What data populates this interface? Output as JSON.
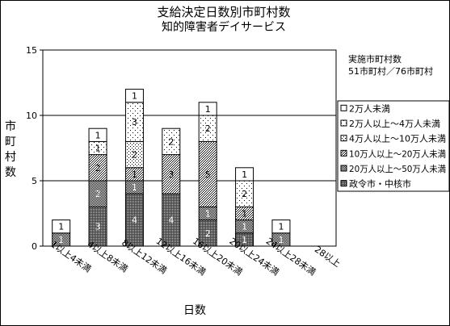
{
  "chart_data": {
    "type": "bar",
    "stacked": true,
    "title": "支給決定日数別市町村数",
    "subtitle": "知的障害者デイサービス",
    "xlabel": "日数",
    "ylabel": "市町村数",
    "ylim": [
      0,
      15
    ],
    "yticks": [
      0,
      5,
      10,
      15
    ],
    "grid": true,
    "legend_position": "right",
    "annotation_lines": [
      "実施市町村数",
      "51市町村／76市町村"
    ],
    "categories": [
      "1以上4未満",
      "4以上8未満",
      "8以上12未満",
      "12以上16未満",
      "16以上20未満",
      "20以上24未満",
      "24以上28未満",
      "28以上"
    ],
    "series": [
      {
        "name": "政令市・中核市",
        "values": [
          0,
          3,
          4,
          4,
          2,
          1,
          0,
          0
        ],
        "pattern": "dense-dots"
      },
      {
        "name": "20万人以上～50万人未満",
        "values": [
          1,
          2,
          1,
          0,
          1,
          1,
          1,
          0
        ],
        "pattern": "medium-dots"
      },
      {
        "name": "10万人以上～20万人未満",
        "values": [
          0,
          2,
          1,
          3,
          5,
          1,
          0,
          0
        ],
        "pattern": "medium-dots-2"
      },
      {
        "name": "4万人以上～10万人未満",
        "values": [
          0,
          0,
          2,
          0,
          0,
          0,
          0,
          0
        ],
        "pattern": "light-dots"
      },
      {
        "name": "2万人以上～4万人未満",
        "values": [
          0,
          1,
          3,
          2,
          2,
          2,
          0,
          0
        ],
        "pattern": "sparse-dots"
      },
      {
        "name": "2万人未満",
        "values": [
          1,
          1,
          1,
          0,
          1,
          1,
          1,
          0
        ],
        "pattern": "white"
      }
    ]
  }
}
